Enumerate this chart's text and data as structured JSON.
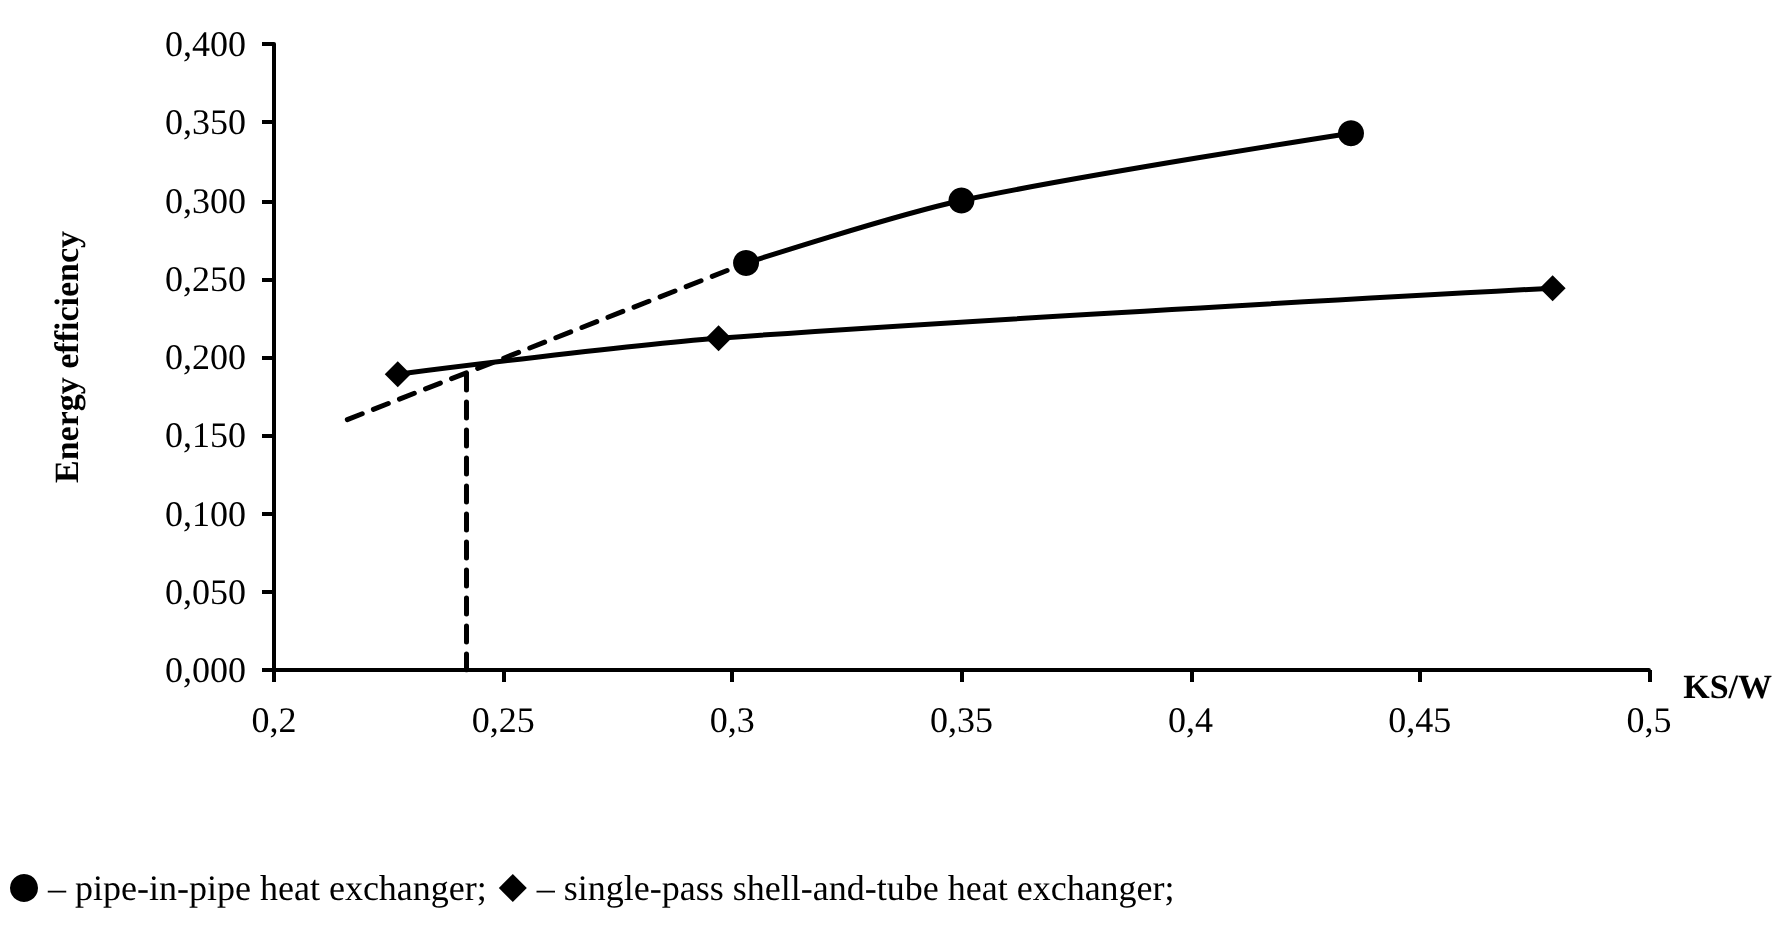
{
  "chart_data": {
    "type": "line",
    "xlabel": "KS/W",
    "ylabel": "Energy efficiency",
    "xlim": [
      0.2,
      0.5
    ],
    "xticks": [
      {
        "value": 0.2,
        "label": "0,2"
      },
      {
        "value": 0.25,
        "label": "0,25"
      },
      {
        "value": 0.3,
        "label": "0,3"
      },
      {
        "value": 0.35,
        "label": "0,35"
      },
      {
        "value": 0.4,
        "label": "0,4"
      },
      {
        "value": 0.45,
        "label": "0,45"
      },
      {
        "value": 0.5,
        "label": "0,5"
      }
    ],
    "ylim": [
      0,
      0.4
    ],
    "yticks": [
      {
        "value": 0,
        "label": "0,000"
      },
      {
        "value": 0.05,
        "label": "0,050"
      },
      {
        "value": 0.1,
        "label": "0,100"
      },
      {
        "value": 0.15,
        "label": "0,150"
      },
      {
        "value": 0.2,
        "label": "0,200"
      },
      {
        "value": 0.25,
        "label": "0,250"
      },
      {
        "value": 0.3,
        "label": "0,300"
      },
      {
        "value": 0.35,
        "label": "0,350"
      },
      {
        "value": 0.4,
        "label": "0,400"
      }
    ],
    "grid": false,
    "legend": "bottom",
    "series": [
      {
        "name": "– pipe-in-pipe heat exchanger;",
        "color": "#000000",
        "marker": "circle",
        "x": [
          0.303,
          0.35,
          0.435
        ],
        "values": [
          0.26,
          0.3,
          0.343
        ]
      },
      {
        "name": "– single-pass shell-and-tube heat exchanger;",
        "color": "#000000",
        "marker": "diamond",
        "x": [
          0.227,
          0.297,
          0.479
        ],
        "values": [
          0.189,
          0.212,
          0.244
        ]
      },
      {
        "color": "#000000",
        "marker": "none",
        "line_style": "dashed",
        "x": [
          0.216,
          0.303
        ],
        "values": [
          0.16,
          0.26
        ]
      },
      {
        "color": "#000000",
        "marker": "none",
        "line_style": "dashed",
        "x": [
          0.242,
          0.242
        ],
        "values": [
          0,
          0.195
        ]
      }
    ]
  }
}
